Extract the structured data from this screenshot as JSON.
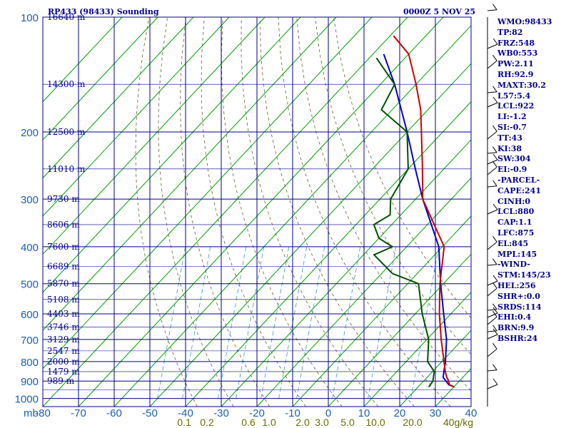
{
  "header": {
    "station": "RP433 (98433) Sounding",
    "time": "0000Z  5 NOV 25"
  },
  "params": [
    "WMO:98433",
    "TP:82",
    "FRZ:548",
    "WB0:553",
    "PW:2.11",
    "RH:92.9",
    "MAXT:30.2",
    "L57:5.4",
    "LCL:922",
    "LI:-1.2",
    "SI:-0.7",
    "TT:43",
    "KI:38",
    "SW:304",
    "EI:-0.9",
    "-PARCEL-",
    "CAPE:241",
    "CINH:0",
    "LCL:880",
    "CAP:1.1",
    "LFC:875",
    "EL:845",
    "MPL:145",
    "-WIND-",
    "STM:145/23",
    "HEL:256",
    "SHR+:0.0",
    "SRDS:114",
    "EHI:0.4",
    "BRN:9.9",
    "BSHR:24"
  ],
  "chart_data": {
    "type": "line",
    "title": "RP433 (98433) Sounding",
    "xlabel": "",
    "ylabel": "mb",
    "pressure_ticks": [
      "100",
      "200",
      "300",
      "400",
      "500",
      "600",
      "700",
      "800",
      "900",
      "1000"
    ],
    "pressure_levels": [
      100,
      200,
      300,
      400,
      500,
      600,
      700,
      800,
      900,
      1000
    ],
    "temp_ticks": [
      "-80",
      "-70",
      "-60",
      "-50",
      "-40",
      "-30",
      "-20",
      "-10",
      "0",
      "10",
      "20",
      "30",
      "40"
    ],
    "temp_values": [
      -80,
      -70,
      -60,
      -50,
      -40,
      -30,
      -20,
      -10,
      0,
      10,
      20,
      30,
      40
    ],
    "xlim": [
      -80,
      40
    ],
    "ylim": [
      1050,
      100
    ],
    "height_labels": [
      {
        "p": 100,
        "text": "16640 m"
      },
      {
        "p": 150,
        "text": "14300 m"
      },
      {
        "p": 200,
        "text": "12500 m"
      },
      {
        "p": 250,
        "text": "11010 m"
      },
      {
        "p": 300,
        "text": "9730 m"
      },
      {
        "p": 350,
        "text": "8606 m"
      },
      {
        "p": 400,
        "text": "7600 m"
      },
      {
        "p": 450,
        "text": "6689 m"
      },
      {
        "p": 500,
        "text": "5870 m"
      },
      {
        "p": 550,
        "text": "5108 m"
      },
      {
        "p": 600,
        "text": "4403 m"
      },
      {
        "p": 650,
        "text": "3746 m"
      },
      {
        "p": 700,
        "text": "3129 m"
      },
      {
        "p": 750,
        "text": "2547 m"
      },
      {
        "p": 800,
        "text": "2000 m"
      },
      {
        "p": 850,
        "text": "1479 m"
      },
      {
        "p": 900,
        "text": "989 m"
      }
    ],
    "mixing_ratio_labels": [
      "0.1",
      "0.2",
      "0.6",
      "1.0",
      "2.0",
      "3.0",
      "5.0",
      "10.0",
      "20.0",
      "40g/kg"
    ],
    "mixing_ratio_values": [
      0.1,
      0.2,
      0.6,
      1.0,
      2.0,
      3.0,
      5.0,
      10.0,
      20.0,
      40.0
    ],
    "temperature_profile": [
      {
        "p": 933,
        "t": 30.2
      },
      {
        "p": 920,
        "t": 28.2
      },
      {
        "p": 900,
        "t": 27.0
      },
      {
        "p": 875,
        "t": 25.2
      },
      {
        "p": 850,
        "t": 23.6
      },
      {
        "p": 800,
        "t": 20.6
      },
      {
        "p": 700,
        "t": 14.0
      },
      {
        "p": 600,
        "t": 6.8
      },
      {
        "p": 500,
        "t": -1.0
      },
      {
        "p": 400,
        "t": -9.5
      },
      {
        "p": 300,
        "t": -28.0
      },
      {
        "p": 250,
        "t": -36.0
      },
      {
        "p": 200,
        "t": -46.0
      },
      {
        "p": 175,
        "t": -52.0
      },
      {
        "p": 150,
        "t": -60.0
      },
      {
        "p": 125,
        "t": -70.0
      },
      {
        "p": 112,
        "t": -79.0
      }
    ],
    "dewpoint_profile": [
      {
        "p": 933,
        "t": 23.0
      },
      {
        "p": 900,
        "t": 22.6
      },
      {
        "p": 850,
        "t": 20.5
      },
      {
        "p": 800,
        "t": 16.0
      },
      {
        "p": 700,
        "t": 10.5
      },
      {
        "p": 600,
        "t": 2.0
      },
      {
        "p": 500,
        "t": -7.0
      },
      {
        "p": 470,
        "t": -17.0
      },
      {
        "p": 420,
        "t": -27.0
      },
      {
        "p": 400,
        "t": -24.0
      },
      {
        "p": 380,
        "t": -30.0
      },
      {
        "p": 350,
        "t": -35.0
      },
      {
        "p": 330,
        "t": -33.0
      },
      {
        "p": 300,
        "t": -37.0
      },
      {
        "p": 250,
        "t": -40.0
      },
      {
        "p": 200,
        "t": -50.0
      },
      {
        "p": 175,
        "t": -63.0
      },
      {
        "p": 150,
        "t": -66.0
      },
      {
        "p": 128,
        "t": -78.0
      }
    ],
    "parcel_profile": [
      {
        "p": 933,
        "t": 30.2
      },
      {
        "p": 920,
        "t": 28.0
      },
      {
        "p": 880,
        "t": 24.5
      },
      {
        "p": 850,
        "t": 23.2
      },
      {
        "p": 800,
        "t": 21.0
      },
      {
        "p": 700,
        "t": 15.5
      },
      {
        "p": 600,
        "t": 8.0
      },
      {
        "p": 500,
        "t": -0.8
      },
      {
        "p": 400,
        "t": -11.0
      },
      {
        "p": 300,
        "t": -28.0
      },
      {
        "p": 250,
        "t": -38.0
      },
      {
        "p": 200,
        "t": -50.0
      },
      {
        "p": 150,
        "t": -66.0
      },
      {
        "p": 125,
        "t": -77.0
      }
    ],
    "colors": {
      "temperature": "#cc0000",
      "dewpoint": "#005000",
      "parcel": "#0000cc",
      "isobar": "#00008b",
      "isotherm": "#00a000",
      "adiabat": "#6b5a2a",
      "mixing": "#3c96c8",
      "axis_labels": "#1c5fb0",
      "mixing_labels": "#6b6b00"
    }
  }
}
